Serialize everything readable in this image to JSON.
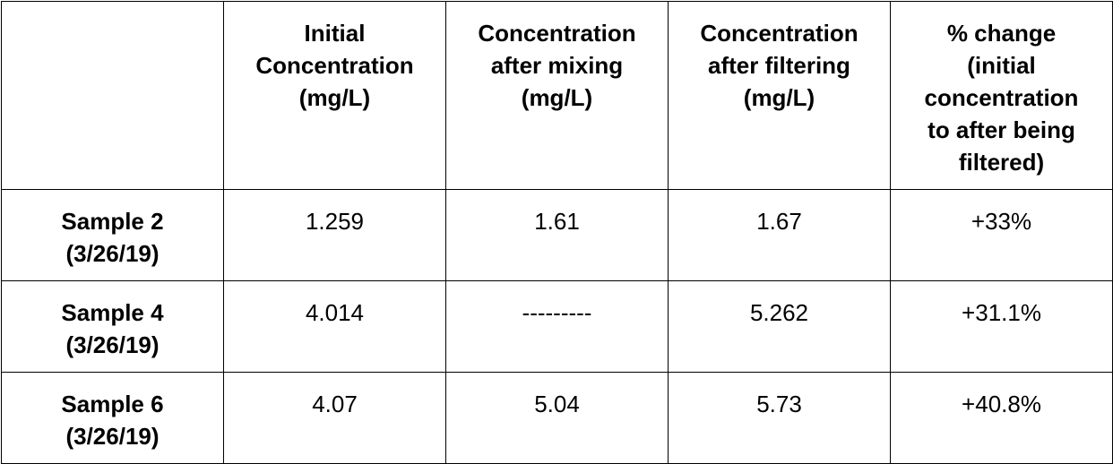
{
  "table": {
    "headers": [
      "",
      "Initial Concentration (mg/L)",
      "Concentration after mixing (mg/L)",
      "Concentration after filtering (mg/L)",
      "% change (initial concentration to after being filtered)"
    ],
    "rows": [
      {
        "label": "Sample 2",
        "date": "(3/26/19)",
        "initial": "1.259",
        "after_mixing": "1.61",
        "after_filtering": "1.67",
        "pct_change": "+33%"
      },
      {
        "label": "Sample 4",
        "date": "(3/26/19)",
        "initial": "4.014",
        "after_mixing": "---------",
        "after_filtering": "5.262",
        "pct_change": "+31.1%"
      },
      {
        "label": "Sample 6",
        "date": "(3/26/19)",
        "initial": "4.07",
        "after_mixing": "5.04",
        "after_filtering": "5.73",
        "pct_change": "+40.8%"
      }
    ]
  }
}
